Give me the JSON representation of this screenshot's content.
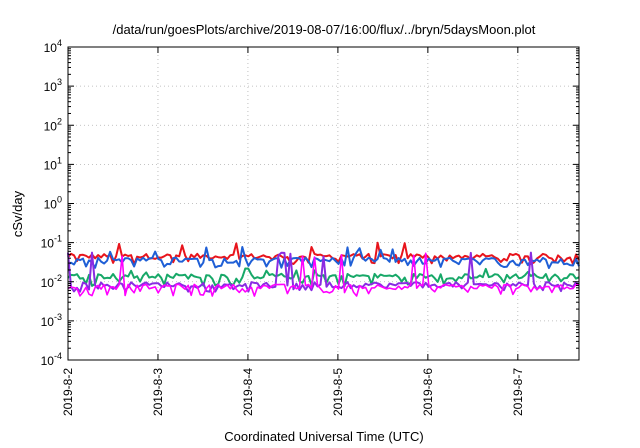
{
  "chart_data": {
    "type": "line",
    "title": "/data/run/goesPlots/archive/2019-08-07/16:00/flux/../bryn/5daysMoon.plot",
    "xlabel": "Coordinated Universal Time (UTC)",
    "ylabel": "cSv/day",
    "yscale": "log",
    "ylim": [
      0.0001,
      10000
    ],
    "y_ticks": [
      {
        "base": "10",
        "exp": "4",
        "value": 10000
      },
      {
        "base": "10",
        "exp": "3",
        "value": 1000
      },
      {
        "base": "10",
        "exp": "2",
        "value": 100
      },
      {
        "base": "10",
        "exp": "1",
        "value": 10
      },
      {
        "base": "10",
        "exp": "0",
        "value": 1
      },
      {
        "base": "10",
        "exp": "-1",
        "value": 0.1
      },
      {
        "base": "10",
        "exp": "-2",
        "value": 0.01
      },
      {
        "base": "10",
        "exp": "-3",
        "value": 0.001
      },
      {
        "base": "10",
        "exp": "-4",
        "value": 0.0001
      }
    ],
    "x_ticks": [
      {
        "label": "2019-8-2",
        "day": 0
      },
      {
        "label": "2019-8-3",
        "day": 1
      },
      {
        "label": "2019-8-4",
        "day": 2
      },
      {
        "label": "2019-8-5",
        "day": 3
      },
      {
        "label": "2019-8-6",
        "day": 4
      },
      {
        "label": "2019-8-7",
        "day": 5
      }
    ],
    "xlim_days": [
      0,
      5.68
    ],
    "grid": true,
    "series": [
      {
        "color": "#e8141c",
        "base": 0.045,
        "dip": 0.032,
        "spike": 0.1
      },
      {
        "color": "#1f5fd6",
        "base": 0.036,
        "dip": 0.026,
        "spike": 0.08
      },
      {
        "color": "#17a868",
        "base": 0.014,
        "dip": 0.009,
        "spike": 0.022
      },
      {
        "color": "#8a2be2",
        "base": 0.0085,
        "dip": 0.0065,
        "spike": 0.06
      },
      {
        "color": "#ff00ff",
        "base": 0.0075,
        "dip": 0.005,
        "spike": 0.06
      }
    ]
  }
}
